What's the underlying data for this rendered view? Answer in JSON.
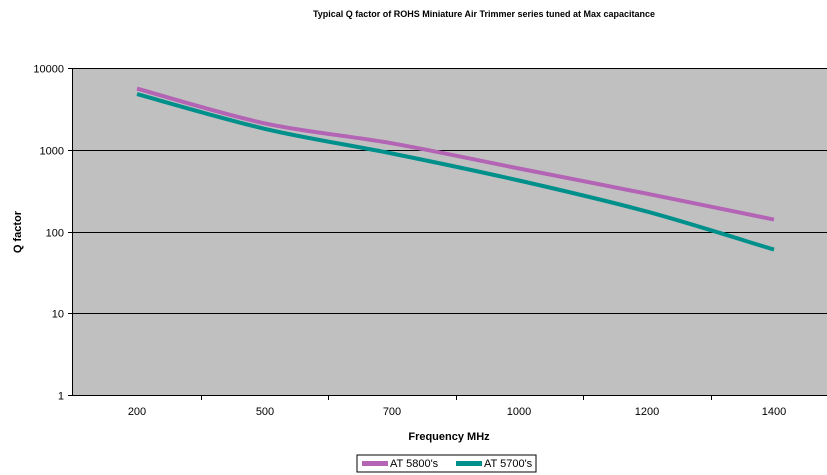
{
  "chart_data": {
    "type": "line",
    "title": "Typical Q factor of ROHS Miniature Air Trimmer series tuned at Max capacitance",
    "xlabel": "Frequency MHz",
    "ylabel": "Q factor",
    "y_scale": "log",
    "ylim": [
      1,
      10000
    ],
    "y_ticks": [
      1,
      10,
      100,
      1000,
      10000
    ],
    "y_tick_labels": [
      "1",
      "10",
      "100",
      "1000",
      "10000"
    ],
    "categories": [
      "200",
      "500",
      "700",
      "1000",
      "1200",
      "1400"
    ],
    "grid": "horizontal",
    "plot_background": "#c0c0c0",
    "legend_position": "bottom",
    "series": [
      {
        "name": "AT 5800's",
        "color": "#b464b4",
        "points": [
          {
            "x": 200,
            "y": 5600
          },
          {
            "x": 500,
            "y": 2100
          },
          {
            "x": 700,
            "y": 1200
          },
          {
            "x": 1000,
            "y": 590
          },
          {
            "x": 1200,
            "y": 290
          },
          {
            "x": 1400,
            "y": 140
          }
        ]
      },
      {
        "name": "AT 5700's",
        "color": "#00908c",
        "points": [
          {
            "x": 200,
            "y": 4800
          },
          {
            "x": 500,
            "y": 1800
          },
          {
            "x": 700,
            "y": 900
          },
          {
            "x": 1000,
            "y": 420
          },
          {
            "x": 1200,
            "y": 175
          },
          {
            "x": 1400,
            "y": 60
          }
        ]
      }
    ]
  }
}
